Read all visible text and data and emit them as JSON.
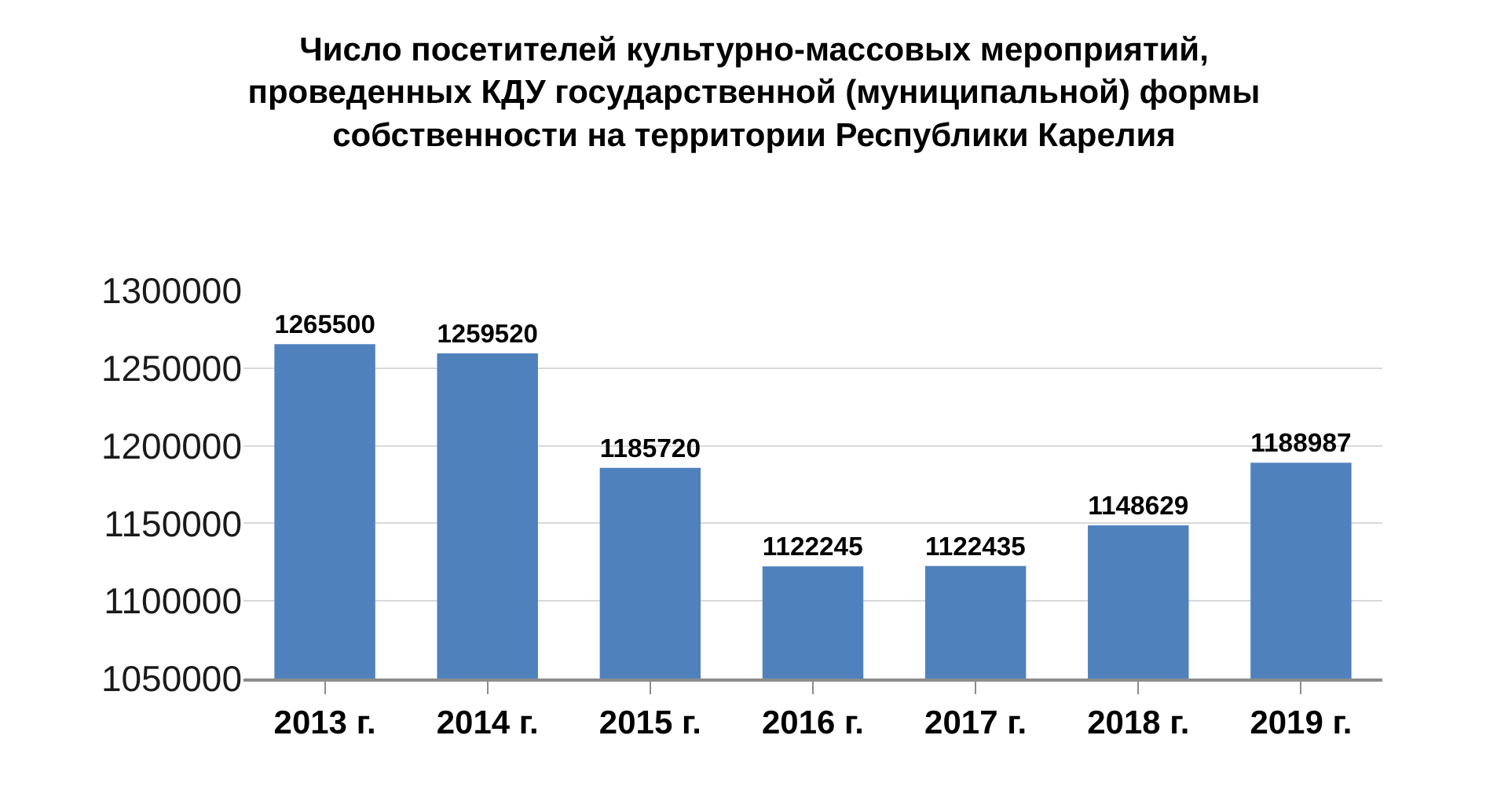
{
  "chart_data": {
    "type": "bar",
    "title": "Число посетителей культурно-массовых мероприятий,\nпроведенных КДУ государственной (муниципальной) формы\nсобственности на территории Республики Карелия",
    "categories": [
      "2013 г.",
      "2014 г.",
      "2015 г.",
      "2016 г.",
      "2017 г.",
      "2018 г.",
      "2019 г."
    ],
    "values": [
      1265500,
      1259520,
      1185720,
      1122245,
      1122435,
      1148629,
      1188987
    ],
    "color": "#4f81bd",
    "ylim": [
      1050000,
      1300000
    ],
    "yticks": [
      1050000,
      1100000,
      1150000,
      1200000,
      1250000,
      1300000
    ],
    "grid": "y",
    "data_labels": true
  }
}
